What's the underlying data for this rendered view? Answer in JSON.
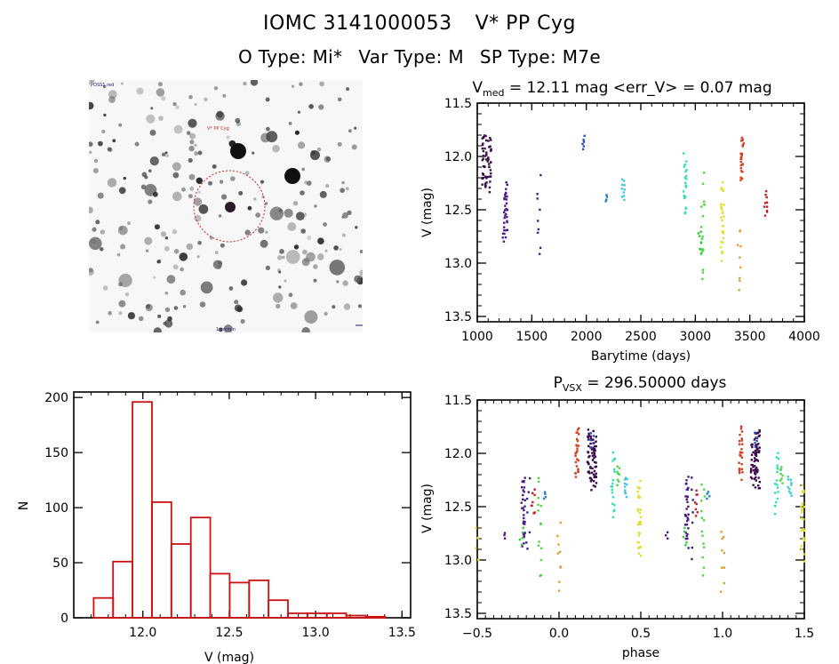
{
  "header": {
    "object_id": "IOMC 3141000053",
    "object_name": "V* PP Cyg",
    "o_type_label": "O Type:",
    "o_type": "Mi*",
    "var_type_label": "Var Type:",
    "var_type": "M",
    "sp_type_label": "SP Type:",
    "sp_type": "M7e"
  },
  "finder_chart": {
    "label_top_left": "POSS1 red",
    "label_target": "V* PP Cyg",
    "label_bottom": "1 arcmin",
    "label_bottom_left": "N",
    "label_bottom_right": "E",
    "circle_color": "#cc2222"
  },
  "chart_data": [
    {
      "type": "scatter",
      "title_main": "V",
      "title_sub": "med",
      "title_rest": " = 12.11 mag <err_V> = 0.07 mag",
      "xlabel": "Barytime (days)",
      "ylabel": "V (mag)",
      "xlim": [
        1000,
        4000
      ],
      "ylim": [
        13.55,
        11.5
      ],
      "yreversed": true,
      "xticks": [
        1000,
        1500,
        2000,
        2500,
        3000,
        3500,
        4000
      ],
      "xtick_labels": [
        "1000",
        "1500",
        "2000",
        "2500",
        "3000",
        "3500",
        "4000"
      ],
      "yticks": [
        11.5,
        12.0,
        12.5,
        13.0,
        13.5
      ],
      "ytick_labels": [
        "11.5",
        "12.0",
        "12.5",
        "13.0",
        "13.5"
      ],
      "clusters": [
        {
          "x": 1085,
          "ymin": 11.75,
          "ymax": 12.36,
          "n": 60,
          "color": "#3a0a4a"
        },
        {
          "x": 1260,
          "ymin": 12.21,
          "ymax": 12.78,
          "n": 30,
          "color": "#4a1a8a"
        },
        {
          "x": 1230,
          "ymin": 12.72,
          "ymax": 12.8,
          "n": 3,
          "color": "#4a1a8a"
        },
        {
          "x": 1565,
          "ymin": 12.17,
          "ymax": 13.01,
          "n": 9,
          "color": "#2a2a8a"
        },
        {
          "x": 1975,
          "ymin": 11.8,
          "ymax": 11.95,
          "n": 6,
          "color": "#2a50c0"
        },
        {
          "x": 2185,
          "ymin": 12.36,
          "ymax": 12.43,
          "n": 4,
          "color": "#2a80c0"
        },
        {
          "x": 2335,
          "ymin": 12.2,
          "ymax": 12.41,
          "n": 10,
          "color": "#40c8e0"
        },
        {
          "x": 2905,
          "ymin": 11.97,
          "ymax": 12.6,
          "n": 22,
          "color": "#30e0b0"
        },
        {
          "x": 3040,
          "ymin": 12.67,
          "ymax": 12.94,
          "n": 8,
          "color": "#30c840"
        },
        {
          "x": 3070,
          "ymin": 12.14,
          "ymax": 13.23,
          "n": 16,
          "color": "#50d840"
        },
        {
          "x": 3245,
          "ymin": 12.21,
          "ymax": 13.02,
          "n": 30,
          "color": "#e0e030"
        },
        {
          "x": 3400,
          "ymin": 12.61,
          "ymax": 13.3,
          "n": 9,
          "color": "#e0a030"
        },
        {
          "x": 3430,
          "ymin": 11.77,
          "ymax": 12.24,
          "n": 25,
          "color": "#d04020"
        },
        {
          "x": 3645,
          "ymin": 12.32,
          "ymax": 12.58,
          "n": 10,
          "color": "#c02020"
        }
      ]
    },
    {
      "type": "bar",
      "title": "",
      "xlabel": "V (mag)",
      "ylabel": "N",
      "xlim": [
        11.6,
        13.55
      ],
      "ylim": [
        0,
        205
      ],
      "bin_start": 11.715,
      "bin_width": 0.1125,
      "values": [
        18,
        51,
        196,
        105,
        67,
        91,
        40,
        32,
        34,
        16,
        4,
        4,
        4,
        2,
        1
      ],
      "xticks": [
        12.0,
        12.5,
        13.0,
        13.5
      ],
      "xtick_labels": [
        "12.0",
        "12.5",
        "13.0",
        "13.5"
      ],
      "yticks": [
        0,
        50,
        100,
        150,
        200
      ],
      "ytick_labels": [
        "0",
        "50",
        "100",
        "150",
        "200"
      ],
      "bar_color": "#cc1111"
    },
    {
      "type": "scatter",
      "title_main": "P",
      "title_sub": "VSX",
      "title_rest": " = 296.50000 days",
      "xlabel": "phase",
      "ylabel": "V (mag)",
      "xlim": [
        -0.5,
        1.5
      ],
      "ylim": [
        13.55,
        11.5
      ],
      "yreversed": true,
      "xticks": [
        -0.5,
        0.0,
        0.5,
        1.0,
        1.5
      ],
      "xtick_labels": [
        "−0.5",
        "0.0",
        "0.5",
        "1.0",
        "1.5"
      ],
      "yticks": [
        11.5,
        12.0,
        12.5,
        13.0,
        13.5
      ],
      "ytick_labels": [
        "11.5",
        "12.0",
        "12.5",
        "13.0",
        "13.5"
      ],
      "clusters": [
        {
          "x": -0.5,
          "ymin": 12.65,
          "ymax": 13.0,
          "n": 4,
          "color": "#e0e030"
        },
        {
          "x": -0.34,
          "ymin": 12.74,
          "ymax": 12.8,
          "n": 3,
          "color": "#4a1a8a"
        },
        {
          "x": -0.22,
          "ymin": 12.17,
          "ymax": 12.9,
          "n": 30,
          "color": "#4a1a8a"
        },
        {
          "x": -0.23,
          "ymin": 12.68,
          "ymax": 12.88,
          "n": 5,
          "color": "#30c840"
        },
        {
          "x": -0.19,
          "ymin": 12.17,
          "ymax": 13.01,
          "n": 7,
          "color": "#2a2a8a"
        },
        {
          "x": -0.16,
          "ymin": 12.32,
          "ymax": 12.6,
          "n": 8,
          "color": "#c02020"
        },
        {
          "x": -0.12,
          "ymin": 12.14,
          "ymax": 13.23,
          "n": 14,
          "color": "#50d840"
        },
        {
          "x": -0.09,
          "ymin": 12.36,
          "ymax": 12.43,
          "n": 4,
          "color": "#2a80c0"
        },
        {
          "x": 0.0,
          "ymin": 12.64,
          "ymax": 13.3,
          "n": 9,
          "color": "#e0a030"
        },
        {
          "x": 0.11,
          "ymin": 11.73,
          "ymax": 12.26,
          "n": 25,
          "color": "#d04020"
        },
        {
          "x": 0.2,
          "ymin": 11.75,
          "ymax": 12.36,
          "n": 70,
          "color": "#3a0a4a"
        },
        {
          "x": 0.2,
          "ymin": 11.8,
          "ymax": 11.95,
          "n": 5,
          "color": "#2a50c0"
        },
        {
          "x": 0.33,
          "ymin": 11.97,
          "ymax": 12.6,
          "n": 18,
          "color": "#30e0b0"
        },
        {
          "x": 0.36,
          "ymin": 12.1,
          "ymax": 12.3,
          "n": 8,
          "color": "#50d840"
        },
        {
          "x": 0.41,
          "ymin": 12.2,
          "ymax": 12.41,
          "n": 10,
          "color": "#40c8e0"
        },
        {
          "x": 0.49,
          "ymin": 12.21,
          "ymax": 13.02,
          "n": 30,
          "color": "#e0e030"
        },
        {
          "x": 0.66,
          "ymin": 12.74,
          "ymax": 12.8,
          "n": 3,
          "color": "#4a1a8a"
        },
        {
          "x": 0.78,
          "ymin": 12.17,
          "ymax": 12.9,
          "n": 30,
          "color": "#4a1a8a"
        },
        {
          "x": 0.77,
          "ymin": 12.68,
          "ymax": 12.88,
          "n": 5,
          "color": "#30c840"
        },
        {
          "x": 0.81,
          "ymin": 12.17,
          "ymax": 13.01,
          "n": 7,
          "color": "#2a2a8a"
        },
        {
          "x": 0.84,
          "ymin": 12.32,
          "ymax": 12.6,
          "n": 8,
          "color": "#c02020"
        },
        {
          "x": 0.88,
          "ymin": 12.14,
          "ymax": 13.23,
          "n": 14,
          "color": "#50d840"
        },
        {
          "x": 0.91,
          "ymin": 12.36,
          "ymax": 12.43,
          "n": 4,
          "color": "#2a80c0"
        },
        {
          "x": 1.0,
          "ymin": 12.64,
          "ymax": 13.3,
          "n": 9,
          "color": "#e0a030"
        },
        {
          "x": 1.11,
          "ymin": 11.73,
          "ymax": 12.26,
          "n": 25,
          "color": "#d04020"
        },
        {
          "x": 1.2,
          "ymin": 11.75,
          "ymax": 12.36,
          "n": 70,
          "color": "#3a0a4a"
        },
        {
          "x": 1.2,
          "ymin": 11.8,
          "ymax": 11.95,
          "n": 5,
          "color": "#2a50c0"
        },
        {
          "x": 1.33,
          "ymin": 11.97,
          "ymax": 12.6,
          "n": 18,
          "color": "#30e0b0"
        },
        {
          "x": 1.36,
          "ymin": 12.1,
          "ymax": 12.3,
          "n": 8,
          "color": "#50d840"
        },
        {
          "x": 1.41,
          "ymin": 12.2,
          "ymax": 12.41,
          "n": 10,
          "color": "#40c8e0"
        },
        {
          "x": 1.49,
          "ymin": 12.21,
          "ymax": 13.02,
          "n": 25,
          "color": "#e0e030"
        }
      ]
    }
  ]
}
